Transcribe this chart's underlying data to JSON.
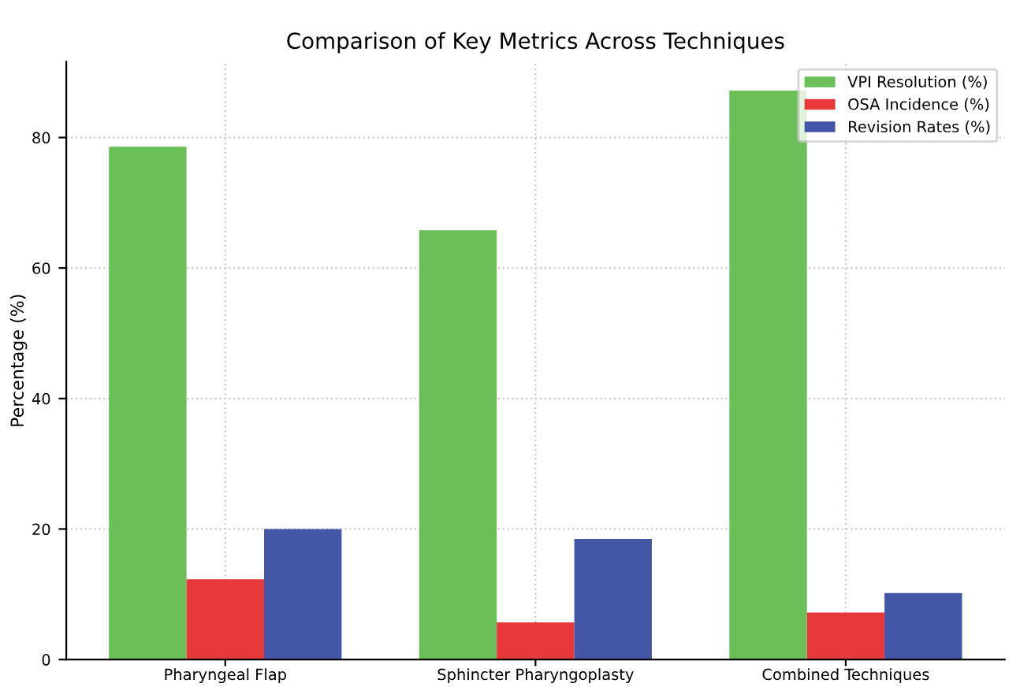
{
  "chart_data": {
    "type": "bar",
    "title": "Comparison of Key Metrics Across Techniques",
    "ylabel": "Percentage (%)",
    "categories": [
      "Pharyngeal Flap",
      "Sphincter Pharyngoplasty",
      "Combined Techniques"
    ],
    "series": [
      {
        "name": "VPI Resolution (%)",
        "color": "#6abf59",
        "values": [
          78.6,
          65.8,
          87.2
        ]
      },
      {
        "name": "OSA Incidence (%)",
        "color": "#e8393a",
        "values": [
          12.3,
          5.7,
          7.2
        ]
      },
      {
        "name": "Revision Rates (%)",
        "color": "#4456a6",
        "values": [
          20.0,
          18.5,
          10.2
        ]
      }
    ],
    "ylim": [
      0,
      91.6
    ],
    "yticks": [
      0,
      20,
      40,
      60,
      80
    ],
    "grid": true,
    "legend": "top right"
  }
}
